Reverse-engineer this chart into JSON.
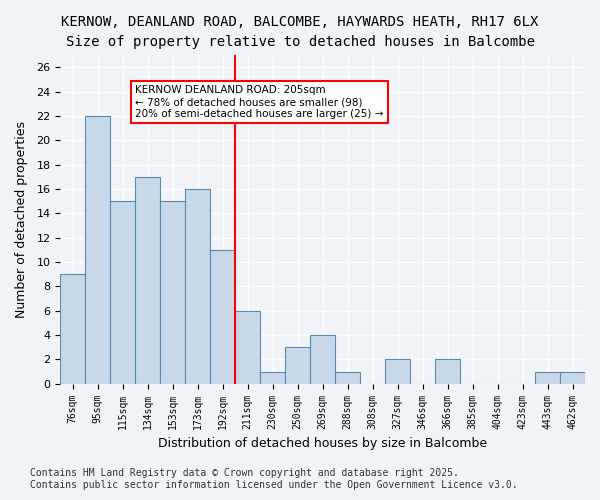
{
  "title_line1": "KERNOW, DEANLAND ROAD, BALCOMBE, HAYWARDS HEATH, RH17 6LX",
  "title_line2": "Size of property relative to detached houses in Balcombe",
  "xlabel": "Distribution of detached houses by size in Balcombe",
  "ylabel": "Number of detached properties",
  "categories": [
    "76sqm",
    "95sqm",
    "115sqm",
    "134sqm",
    "153sqm",
    "173sqm",
    "192sqm",
    "211sqm",
    "230sqm",
    "250sqm",
    "269sqm",
    "288sqm",
    "308sqm",
    "327sqm",
    "346sqm",
    "366sqm",
    "385sqm",
    "404sqm",
    "423sqm",
    "443sqm",
    "462sqm"
  ],
  "values": [
    9,
    22,
    15,
    17,
    15,
    16,
    11,
    6,
    1,
    3,
    4,
    1,
    0,
    2,
    0,
    2,
    0,
    0,
    0,
    1,
    1
  ],
  "bar_color": "#c8d8e8",
  "bar_edge_color": "#5a8ab0",
  "vline_x_index": 7,
  "vline_color": "red",
  "vline_value": 205,
  "annotation_text": "KERNOW DEANLAND ROAD: 205sqm\n← 78% of detached houses are smaller (98)\n20% of semi-detached houses are larger (25) →",
  "annotation_box_color": "white",
  "annotation_box_edge_color": "red",
  "ylim": [
    0,
    27
  ],
  "yticks": [
    0,
    2,
    4,
    6,
    8,
    10,
    12,
    14,
    16,
    18,
    20,
    22,
    24,
    26
  ],
  "footer_line1": "Contains HM Land Registry data © Crown copyright and database right 2025.",
  "footer_line2": "Contains public sector information licensed under the Open Government Licence v3.0.",
  "background_color": "#f0f4f8",
  "plot_background_color": "#f0f4f8",
  "grid_color": "#ffffff",
  "title_fontsize": 10,
  "subtitle_fontsize": 10,
  "tick_fontsize": 7,
  "label_fontsize": 9,
  "footer_fontsize": 7
}
